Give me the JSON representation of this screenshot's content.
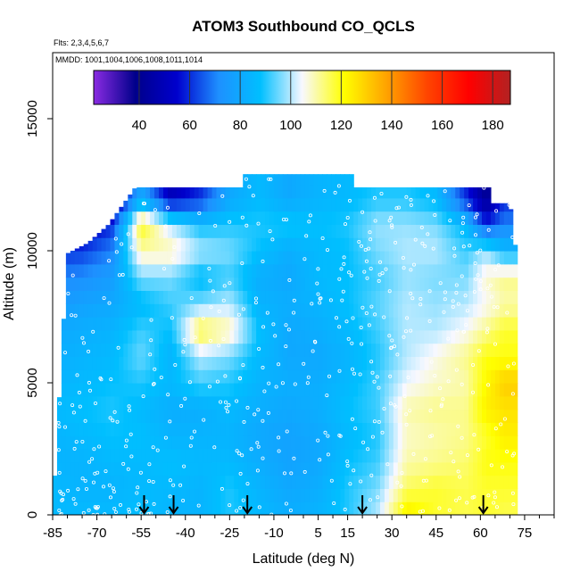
{
  "chart_data": {
    "type": "heatmap",
    "title": "ATOM3 Southbound CO_QCLS",
    "flights_note": "Flts: 2,3,4,5,6,7",
    "mmdd_note": "MMDD: 1001,1004,1006,1008,1011,1014",
    "xlabel": "Latitude (deg N)",
    "ylabel": "Altitude (m)",
    "xlim": [
      -85,
      85
    ],
    "ylim": [
      0,
      17500
    ],
    "x_ticks": [
      -85,
      -70,
      -55,
      -40,
      -25,
      -10,
      5,
      15,
      30,
      45,
      60,
      75
    ],
    "y_ticks": [
      0,
      5000,
      10000,
      15000
    ],
    "y_tick_labels": [
      "0",
      "5000",
      "10000",
      "15000"
    ],
    "colorbar": {
      "range": [
        22,
        187
      ],
      "ticks": [
        40,
        60,
        80,
        100,
        120,
        140,
        160,
        180
      ],
      "colors": [
        "#8a2be2",
        "#00008b",
        "#0000cd",
        "#1e90ff",
        "#00bfff",
        "#f8f8ff",
        "#ffff00",
        "#ffa500",
        "#ff4500",
        "#ff0000",
        "#b22222"
      ]
    },
    "ceiling_profile": [
      {
        "lat": -85,
        "alt": 0
      },
      {
        "lat": -80,
        "alt": 9900
      },
      {
        "lat": -73,
        "alt": 10300
      },
      {
        "lat": -66,
        "alt": 11000
      },
      {
        "lat": -57,
        "alt": 12400
      },
      {
        "lat": -20,
        "alt": 12400
      },
      {
        "lat": -20,
        "alt": 12900
      },
      {
        "lat": 17,
        "alt": 12900
      },
      {
        "lat": 17,
        "alt": 12400
      },
      {
        "lat": 63,
        "alt": 12400
      },
      {
        "lat": 63,
        "alt": 11800
      },
      {
        "lat": 70,
        "alt": 11800
      },
      {
        "lat": 72,
        "alt": 10000
      },
      {
        "lat": 73,
        "alt": 5000
      },
      {
        "lat": 71,
        "alt": 0
      }
    ],
    "bottom_left_profile": [
      {
        "lat": -85,
        "alt": 9900
      },
      {
        "lat": -85,
        "alt": 4000
      },
      {
        "lat": -83,
        "alt": 500
      },
      {
        "lat": -82,
        "alt": 0
      }
    ],
    "field": [
      {
        "lat": -85,
        "v": [
          86,
          86,
          84,
          84,
          86,
          84,
          82,
          80,
          74,
          70,
          60,
          40,
          35
        ]
      },
      {
        "lat": -75,
        "v": [
          86,
          84,
          84,
          86,
          88,
          86,
          84,
          82,
          78,
          72,
          62,
          50,
          40
        ]
      },
      {
        "lat": -65,
        "v": [
          86,
          84,
          86,
          88,
          90,
          88,
          86,
          84,
          80,
          76,
          70,
          60,
          40
        ]
      },
      {
        "lat": -55,
        "v": [
          88,
          86,
          86,
          88,
          86,
          90,
          95,
          92,
          86,
          96,
          110,
          120,
          80
        ]
      },
      {
        "lat": -45,
        "v": [
          84,
          86,
          88,
          84,
          82,
          86,
          84,
          88,
          92,
          96,
          110,
          100,
          50
        ]
      },
      {
        "lat": -35,
        "v": [
          84,
          84,
          86,
          84,
          82,
          92,
          100,
          118,
          96,
          86,
          100,
          88,
          60
        ]
      },
      {
        "lat": -25,
        "v": [
          90,
          90,
          86,
          84,
          86,
          90,
          96,
          110,
          100,
          92,
          96,
          90,
          80
        ]
      },
      {
        "lat": -15,
        "v": [
          86,
          84,
          82,
          80,
          82,
          84,
          86,
          88,
          84,
          82,
          88,
          90,
          86
        ]
      },
      {
        "lat": -5,
        "v": [
          82,
          80,
          78,
          78,
          80,
          82,
          80,
          80,
          82,
          80,
          82,
          90,
          80
        ]
      },
      {
        "lat": 5,
        "v": [
          84,
          82,
          80,
          80,
          82,
          82,
          80,
          82,
          84,
          86,
          86,
          88,
          84
        ]
      },
      {
        "lat": 15,
        "v": [
          90,
          90,
          88,
          86,
          88,
          86,
          84,
          86,
          88,
          88,
          88,
          90,
          86
        ]
      },
      {
        "lat": 25,
        "v": [
          100,
          96,
          92,
          90,
          92,
          92,
          90,
          92,
          94,
          92,
          96,
          98,
          90
        ]
      },
      {
        "lat": 35,
        "v": [
          125,
          115,
          110,
          108,
          110,
          104,
          100,
          100,
          100,
          98,
          100,
          98,
          90
        ]
      },
      {
        "lat": 45,
        "v": [
          118,
          118,
          112,
          110,
          112,
          108,
          106,
          100,
          98,
          96,
          100,
          96,
          86
        ]
      },
      {
        "lat": 55,
        "v": [
          116,
          116,
          114,
          112,
          112,
          110,
          112,
          105,
          100,
          96,
          92,
          86,
          60
        ]
      },
      {
        "lat": 62,
        "v": [
          118,
          118,
          120,
          118,
          124,
          122,
          120,
          112,
          105,
          108,
          98,
          60,
          40
        ]
      },
      {
        "lat": 68,
        "v": [
          116,
          118,
          120,
          124,
          126,
          130,
          120,
          118,
          110,
          112,
          86,
          70,
          60
        ]
      }
    ],
    "field_altitudes": [
      0,
      1000,
      2000,
      3000,
      4000,
      5000,
      6000,
      7000,
      8000,
      9000,
      10000,
      11000,
      12000
    ],
    "arrows_lat": [
      -54,
      -44,
      -19,
      20,
      61
    ]
  }
}
